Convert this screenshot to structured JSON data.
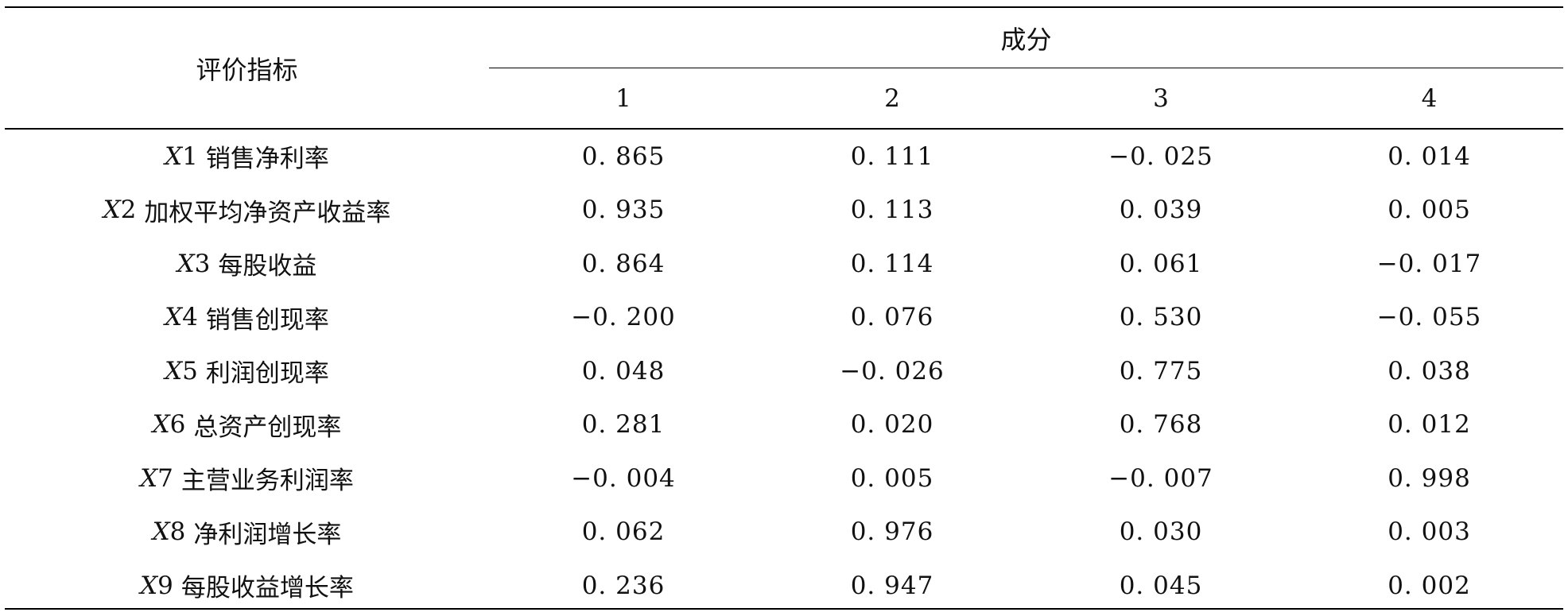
{
  "table": {
    "header": {
      "indicator_label": "评价指标",
      "group_label": "成分",
      "components": [
        "1",
        "2",
        "3",
        "4"
      ]
    },
    "rows": [
      {
        "code": "X",
        "num": "1",
        "name": "销售净利率",
        "values": [
          "0. 865",
          "0. 111",
          "−0. 025",
          "0. 014"
        ]
      },
      {
        "code": "X",
        "num": "2",
        "name": "加权平均净资产收益率",
        "values": [
          "0. 935",
          "0. 113",
          "0. 039",
          "0. 005"
        ]
      },
      {
        "code": "X",
        "num": "3",
        "name": "每股收益",
        "values": [
          "0. 864",
          "0. 114",
          "0. 061",
          "−0. 017"
        ]
      },
      {
        "code": "X",
        "num": "4",
        "name": "销售创现率",
        "values": [
          "−0. 200",
          "0. 076",
          "0. 530",
          "−0. 055"
        ]
      },
      {
        "code": "X",
        "num": "5",
        "name": "利润创现率",
        "values": [
          "0. 048",
          "−0. 026",
          "0. 775",
          "0. 038"
        ]
      },
      {
        "code": "X",
        "num": "6",
        "name": "总资产创现率",
        "values": [
          "0. 281",
          "0. 020",
          "0. 768",
          "0. 012"
        ]
      },
      {
        "code": "X",
        "num": "7",
        "name": "主营业务利润率",
        "values": [
          "−0. 004",
          "0. 005",
          "−0. 007",
          "0. 998"
        ]
      },
      {
        "code": "X",
        "num": "8",
        "name": "净利润增长率",
        "values": [
          "0. 062",
          "0. 976",
          "0. 030",
          "0. 003"
        ]
      },
      {
        "code": "X",
        "num": "9",
        "name": "每股收益增长率",
        "values": [
          "0. 236",
          "0. 947",
          "0. 045",
          "0. 002"
        ]
      }
    ]
  }
}
